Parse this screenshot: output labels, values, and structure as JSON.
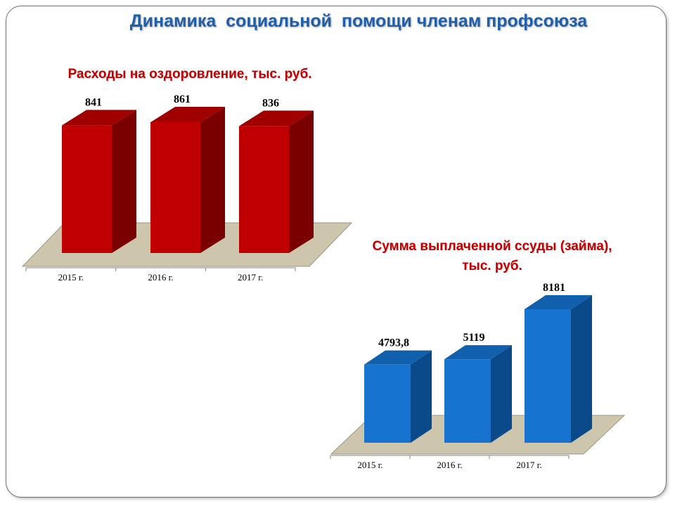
{
  "slide": {
    "title": "Динамика  социальной  помощи членам профсоюза"
  },
  "chart_data": [
    {
      "type": "bar",
      "title": "Расходы на оздоровление, тыс. руб.",
      "categories": [
        "2015 г.",
        "2016 г.",
        "2017 г."
      ],
      "values": [
        841,
        861,
        836
      ],
      "value_labels": [
        "841",
        "861",
        "836"
      ],
      "ylim": [
        0,
        861
      ],
      "colors": {
        "front": "#c00000",
        "side": "#7a0000",
        "top": "#a00000",
        "floor": "#cdc5ac"
      }
    },
    {
      "type": "bar",
      "title": "Сумма выплаченной ссуды (займа), тыс. руб.",
      "title_lines": [
        "Сумма выплаченной ссуды (займа),",
        "тыс. руб."
      ],
      "categories": [
        "2015 г.",
        "2016 г.",
        "2017 г."
      ],
      "values": [
        4793.8,
        5119,
        8181
      ],
      "value_labels": [
        "4793,8",
        "5119",
        "8181"
      ],
      "ylim": [
        0,
        8181
      ],
      "colors": {
        "front": "#1673cf",
        "side": "#0b4a8a",
        "top": "#1160ad",
        "floor": "#cdc5ac"
      }
    }
  ]
}
